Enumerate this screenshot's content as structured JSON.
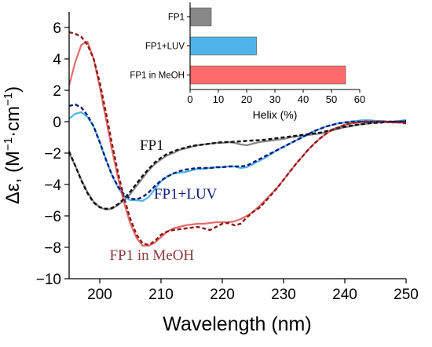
{
  "chart_data": [
    {
      "type": "line",
      "xlabel": "Wavelength (nm)",
      "ylabel": {
        "main": "Δε, (M",
        "sup1": "−1",
        "mid": "·cm",
        "sup2": "−1",
        "end": ")"
      },
      "xlim": [
        195,
        250
      ],
      "ylim": [
        -10,
        7
      ],
      "xticks": [
        200,
        210,
        220,
        230,
        240,
        250
      ],
      "yticks": [
        -10,
        -8,
        -6,
        -4,
        -2,
        0,
        2,
        4,
        6
      ],
      "grid": false,
      "series": [
        {
          "name": "FP1",
          "color": "#888888",
          "fit_color": "#111111",
          "x": [
            195,
            196,
            197,
            198,
            199,
            200,
            201,
            202,
            203,
            204,
            205,
            206,
            207,
            208,
            209,
            210,
            211,
            212,
            213,
            214,
            215,
            216,
            217,
            218,
            219,
            220,
            221,
            222,
            223,
            224,
            225,
            226,
            227,
            228,
            229,
            230,
            231,
            232,
            233,
            234,
            235,
            236,
            237,
            238,
            239,
            240,
            241,
            242,
            243,
            244,
            245,
            246,
            247,
            248,
            249,
            250
          ],
          "values": [
            -2.0,
            -2.8,
            -3.7,
            -4.5,
            -5.1,
            -5.45,
            -5.6,
            -5.55,
            -5.3,
            -5.0,
            -4.6,
            -4.1,
            -3.6,
            -3.1,
            -2.7,
            -2.4,
            -2.15,
            -2.0,
            -1.8,
            -1.7,
            -1.6,
            -1.5,
            -1.45,
            -1.4,
            -1.35,
            -1.35,
            -1.3,
            -1.35,
            -1.45,
            -1.5,
            -1.4,
            -1.3,
            -1.25,
            -1.2,
            -1.15,
            -1.1,
            -1.0,
            -0.95,
            -0.9,
            -0.85,
            -0.8,
            -0.75,
            -0.65,
            -0.55,
            -0.45,
            -0.35,
            -0.3,
            -0.2,
            -0.15,
            -0.1,
            -0.05,
            -0.05,
            0.0,
            0.0,
            0.05,
            0.1
          ],
          "fit": [
            -1.9,
            -2.8,
            -3.75,
            -4.55,
            -5.15,
            -5.45,
            -5.55,
            -5.5,
            -5.25,
            -4.9,
            -4.45,
            -3.95,
            -3.45,
            -3.0,
            -2.6,
            -2.3,
            -2.05,
            -1.9,
            -1.75,
            -1.65,
            -1.55,
            -1.5,
            -1.45,
            -1.4,
            -1.35,
            -1.3,
            -1.3,
            -1.28,
            -1.25,
            -1.22,
            -1.2,
            -1.18,
            -1.15,
            -1.1,
            -1.05,
            -1.0,
            -0.95,
            -0.9,
            -0.85,
            -0.8,
            -0.75,
            -0.7,
            -0.6,
            -0.5,
            -0.4,
            -0.32,
            -0.25,
            -0.2,
            -0.15,
            -0.1,
            -0.08,
            -0.05,
            -0.03,
            0.0,
            0.0,
            0.05
          ]
        },
        {
          "name": "FP1+LUV",
          "color": "#4fb3ea",
          "fit_color": "#0d1a7a",
          "x": [
            195,
            196,
            197,
            198,
            199,
            200,
            201,
            202,
            203,
            204,
            205,
            206,
            207,
            208,
            209,
            210,
            211,
            212,
            213,
            214,
            215,
            216,
            217,
            218,
            219,
            220,
            221,
            222,
            223,
            224,
            225,
            226,
            227,
            228,
            229,
            230,
            231,
            232,
            233,
            234,
            235,
            236,
            237,
            238,
            239,
            240,
            241,
            242,
            243,
            244,
            245,
            246,
            247,
            248,
            249,
            250
          ],
          "values": [
            0.2,
            0.5,
            0.6,
            0.3,
            -0.3,
            -1.3,
            -2.4,
            -3.4,
            -4.2,
            -4.8,
            -5.0,
            -5.0,
            -5.05,
            -4.8,
            -4.3,
            -3.8,
            -3.5,
            -3.3,
            -3.25,
            -3.2,
            -3.1,
            -3.0,
            -3.0,
            -2.95,
            -2.9,
            -2.9,
            -2.85,
            -2.85,
            -2.95,
            -2.9,
            -2.7,
            -2.5,
            -2.3,
            -2.05,
            -1.8,
            -1.6,
            -1.4,
            -1.2,
            -1.0,
            -0.8,
            -0.6,
            -0.45,
            -0.3,
            -0.2,
            -0.1,
            -0.05,
            0.0,
            0.05,
            0.1,
            0.1,
            0.05,
            0.05,
            0.0,
            0.0,
            0.05,
            0.1
          ],
          "fit": [
            1.0,
            1.1,
            0.9,
            0.4,
            -0.3,
            -1.3,
            -2.4,
            -3.4,
            -4.15,
            -4.65,
            -4.9,
            -4.95,
            -4.8,
            -4.5,
            -4.1,
            -3.75,
            -3.5,
            -3.3,
            -3.15,
            -3.05,
            -3.0,
            -2.95,
            -2.95,
            -2.95,
            -2.9,
            -2.9,
            -2.85,
            -2.85,
            -2.85,
            -2.8,
            -2.6,
            -2.4,
            -2.2,
            -2.0,
            -1.8,
            -1.6,
            -1.4,
            -1.2,
            -1.0,
            -0.8,
            -0.6,
            -0.45,
            -0.3,
            -0.2,
            -0.1,
            -0.05,
            0.0,
            0.0,
            0.0,
            0.0,
            0.0,
            0.0,
            0.0,
            0.0,
            0.0,
            0.0
          ]
        },
        {
          "name": "FP1 in MeOH",
          "color": "#e86b6b",
          "fit_color": "#8b1a1a",
          "x": [
            195,
            196,
            197,
            198,
            199,
            200,
            201,
            202,
            203,
            204,
            205,
            206,
            207,
            208,
            209,
            210,
            211,
            212,
            213,
            214,
            215,
            216,
            217,
            218,
            219,
            220,
            221,
            222,
            223,
            224,
            225,
            226,
            227,
            228,
            229,
            230,
            231,
            232,
            233,
            234,
            235,
            236,
            237,
            238,
            239,
            240,
            241,
            242,
            243,
            244,
            245,
            246,
            247,
            248,
            249,
            250
          ],
          "values": [
            2.3,
            3.8,
            4.9,
            5.1,
            4.0,
            2.2,
            0.2,
            -1.8,
            -3.6,
            -5.2,
            -6.5,
            -7.4,
            -7.9,
            -7.9,
            -7.7,
            -7.35,
            -7.0,
            -6.8,
            -6.7,
            -6.6,
            -6.55,
            -6.5,
            -6.5,
            -6.45,
            -6.4,
            -6.4,
            -6.4,
            -6.35,
            -6.2,
            -6.0,
            -5.75,
            -5.4,
            -5.0,
            -4.6,
            -4.2,
            -3.7,
            -3.2,
            -2.7,
            -2.25,
            -1.8,
            -1.4,
            -1.05,
            -0.75,
            -0.5,
            -0.35,
            -0.2,
            -0.1,
            -0.05,
            0.0,
            0.0,
            0.0,
            0.0,
            0.0,
            -0.05,
            -0.05,
            -0.1
          ],
          "fit": [
            5.7,
            5.6,
            5.4,
            4.9,
            4.0,
            2.5,
            0.6,
            -1.4,
            -3.3,
            -4.9,
            -6.2,
            -7.2,
            -7.75,
            -7.85,
            -7.6,
            -7.2,
            -7.0,
            -6.9,
            -6.85,
            -6.8,
            -6.75,
            -6.7,
            -6.8,
            -6.9,
            -6.7,
            -6.5,
            -6.45,
            -6.6,
            -6.5,
            -6.1,
            -5.75,
            -5.5,
            -5.1,
            -4.65,
            -4.2,
            -3.7,
            -3.2,
            -2.7,
            -2.25,
            -1.8,
            -1.4,
            -1.05,
            -0.75,
            -0.5,
            -0.35,
            -0.2,
            -0.1,
            -0.05,
            0.0,
            0.0,
            0.0,
            0.0,
            -0.02,
            -0.05,
            -0.05,
            -0.1
          ]
        }
      ],
      "annotations": [
        {
          "text": "FP1",
          "color": "#111111",
          "x": 208.5,
          "y": -1.8
        },
        {
          "text": "FP1+LUV",
          "color": "#0d1a7a",
          "x": 214.0,
          "y": -4.9
        },
        {
          "text": "FP1 in MeOH",
          "color": "#8b3a3a",
          "x": 208.5,
          "y": -8.8
        }
      ]
    },
    {
      "type": "bar",
      "orientation": "horizontal",
      "xlabel": "Helix (%)",
      "ylabel": "",
      "xlim": [
        0,
        60
      ],
      "xticks": [
        0,
        10,
        20,
        30,
        40,
        50,
        60
      ],
      "grid": false,
      "categories": [
        "FP1",
        "FP1+LUV",
        "FP1 in MeOH"
      ],
      "values": [
        7.5,
        23.5,
        55
      ],
      "colors": [
        "#888888",
        "#4fb3ea",
        "#ff6b6b"
      ]
    }
  ]
}
